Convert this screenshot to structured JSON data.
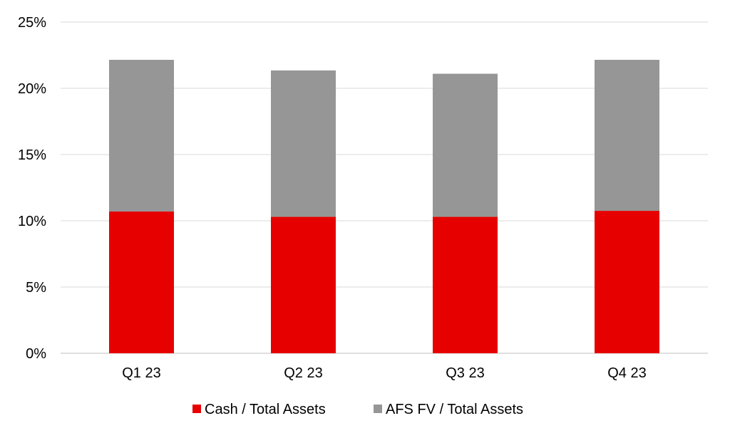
{
  "chart_data": {
    "type": "bar",
    "stacked": true,
    "title": "",
    "xlabel": "",
    "ylabel": "",
    "categories": [
      "Q1 23",
      "Q2 23",
      "Q3 23",
      "Q4 23"
    ],
    "series": [
      {
        "name": "Cash / Total Assets",
        "color": "#E60000",
        "values": [
          10.7,
          10.3,
          10.3,
          10.75
        ]
      },
      {
        "name": "AFS FV / Total Assets",
        "color": "#969696",
        "values": [
          11.45,
          11.05,
          10.8,
          11.4
        ]
      }
    ],
    "ylim": [
      0,
      25
    ],
    "yticks": [
      0,
      5,
      10,
      15,
      20,
      25
    ],
    "ytick_labels": [
      "0%",
      "5%",
      "10%",
      "15%",
      "20%",
      "25%"
    ],
    "grid": true,
    "legend_position": "bottom"
  }
}
